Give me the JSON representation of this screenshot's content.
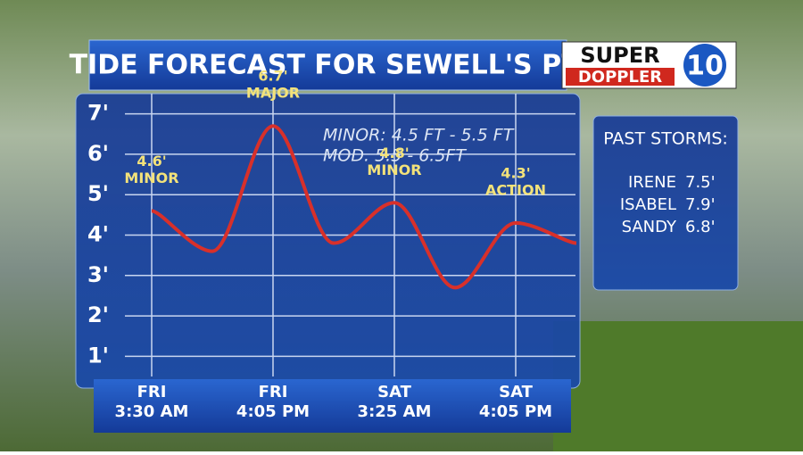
{
  "header": {
    "title": "TIDE FORECAST FOR SEWELL'S PT.",
    "logo": [
      "SUPER",
      "DOPPLER",
      "10"
    ]
  },
  "chart_data": {
    "type": "line",
    "categories": [
      [
        "FRI",
        "3:30 AM"
      ],
      null,
      [
        "FRI",
        "4:05 PM"
      ],
      null,
      [
        "SAT",
        "3:25 AM"
      ],
      null,
      [
        "SAT",
        "4:05 PM"
      ],
      null
    ],
    "series": [
      {
        "name": "Tide",
        "color": "#d8302a",
        "values": [
          4.6,
          3.6,
          6.7,
          3.8,
          4.8,
          2.7,
          4.3,
          3.8
        ],
        "value_labels": [
          "4.6'",
          null,
          "6.7'",
          null,
          "4.8'",
          null,
          "4.3'",
          null
        ],
        "flood_levels": [
          "MINOR",
          null,
          "MAJOR",
          null,
          "MINOR",
          null,
          "ACTION",
          null
        ]
      }
    ],
    "ylim": [
      0.5,
      7.5
    ],
    "yticks": [
      {
        "value": 1,
        "label": "1'"
      },
      {
        "value": 2,
        "label": "2'"
      },
      {
        "value": 3,
        "label": "3'"
      },
      {
        "value": 4,
        "label": "4'"
      },
      {
        "value": 5,
        "label": "5'"
      },
      {
        "value": 6,
        "label": "6'"
      },
      {
        "value": 7,
        "label": "7'"
      }
    ],
    "grid": true,
    "annotations": [
      "MINOR: 4.5 FT - 5.5 FT",
      "MOD. 5.5 - 6.5FT"
    ]
  },
  "sidebar": {
    "title": "PAST STORMS:",
    "rows": [
      [
        "IRENE",
        "7.5'"
      ],
      [
        "ISABEL",
        "7.9'"
      ],
      [
        "SANDY",
        "6.8'"
      ]
    ]
  }
}
